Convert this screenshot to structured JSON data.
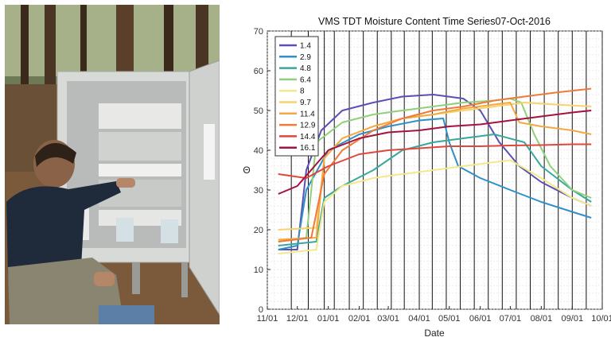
{
  "photo": {
    "description_icon": "photo-icon",
    "subject": "field-technician-at-tdt-enclosure"
  },
  "chart_data": {
    "type": "line",
    "title": "VMS TDT Moisture Content Time Series07-Oct-2016",
    "xlabel": "Date",
    "ylabel": "Θ",
    "ylim": [
      0,
      70
    ],
    "yticks": [
      0,
      10,
      20,
      30,
      40,
      50,
      60,
      70
    ],
    "xticks": [
      "11/01",
      "12/01",
      "01/01",
      "02/01",
      "03/01",
      "04/01",
      "05/01",
      "06/01",
      "07/01",
      "08/01",
      "09/01",
      "10/01"
    ],
    "xlim": [
      "2015-11-01",
      "2016-10-01"
    ],
    "grid": true,
    "legend_position": "top-left",
    "vlines": [
      "2015-11-25",
      "2015-12-12",
      "2015-12-28",
      "2016-01-07",
      "2016-01-22",
      "2016-02-05",
      "2016-02-19",
      "2016-03-04",
      "2016-03-17",
      "2016-04-01",
      "2016-04-14",
      "2016-04-28",
      "2016-05-12",
      "2016-05-26",
      "2016-06-09",
      "2016-06-23",
      "2016-07-07",
      "2016-07-21",
      "2016-08-04",
      "2016-08-18",
      "2016-09-01",
      "2016-09-15"
    ],
    "series": [
      {
        "name": "1.4",
        "color": "#5b4fb5",
        "points": [
          [
            "2015-11-12",
            15
          ],
          [
            "2015-12-01",
            15
          ],
          [
            "2015-12-10",
            35
          ],
          [
            "2015-12-25",
            45
          ],
          [
            "2016-01-15",
            50
          ],
          [
            "2016-02-15",
            52
          ],
          [
            "2016-03-15",
            53.5
          ],
          [
            "2016-04-15",
            54
          ],
          [
            "2016-05-15",
            53
          ],
          [
            "2016-06-01",
            50
          ],
          [
            "2016-06-20",
            42
          ],
          [
            "2016-07-10",
            36
          ],
          [
            "2016-08-01",
            32
          ],
          [
            "2016-09-01",
            28
          ],
          [
            "2016-09-20",
            26
          ]
        ]
      },
      {
        "name": "2.9",
        "color": "#2f8fc7",
        "points": [
          [
            "2015-11-12",
            15
          ],
          [
            "2015-12-01",
            16
          ],
          [
            "2015-12-10",
            30
          ],
          [
            "2016-01-01",
            40
          ],
          [
            "2016-02-01",
            44
          ],
          [
            "2016-03-01",
            46
          ],
          [
            "2016-04-01",
            47.5
          ],
          [
            "2016-04-25",
            48
          ],
          [
            "2016-05-01",
            42
          ],
          [
            "2016-05-10",
            36
          ],
          [
            "2016-06-01",
            33
          ],
          [
            "2016-07-01",
            30
          ],
          [
            "2016-08-01",
            27
          ],
          [
            "2016-09-01",
            24.5
          ],
          [
            "2016-09-20",
            23
          ]
        ]
      },
      {
        "name": "4.8",
        "color": "#3aa79b",
        "points": [
          [
            "2015-11-12",
            16
          ],
          [
            "2015-12-20",
            17
          ],
          [
            "2015-12-28",
            28
          ],
          [
            "2016-01-15",
            31
          ],
          [
            "2016-02-15",
            35
          ],
          [
            "2016-03-15",
            40
          ],
          [
            "2016-04-15",
            42
          ],
          [
            "2016-05-15",
            43
          ],
          [
            "2016-06-15",
            44
          ],
          [
            "2016-07-15",
            42
          ],
          [
            "2016-08-01",
            36
          ],
          [
            "2016-09-01",
            30
          ],
          [
            "2016-09-20",
            27
          ]
        ]
      },
      {
        "name": "6.4",
        "color": "#8fd07a",
        "points": [
          [
            "2015-11-12",
            17
          ],
          [
            "2015-12-10",
            18
          ],
          [
            "2015-12-20",
            42
          ],
          [
            "2016-01-15",
            47
          ],
          [
            "2016-02-15",
            49
          ],
          [
            "2016-03-15",
            50
          ],
          [
            "2016-04-15",
            51
          ],
          [
            "2016-05-15",
            52
          ],
          [
            "2016-06-15",
            52.5
          ],
          [
            "2016-07-01",
            53
          ],
          [
            "2016-07-12",
            52
          ],
          [
            "2016-07-25",
            44
          ],
          [
            "2016-08-10",
            36
          ],
          [
            "2016-09-01",
            30
          ],
          [
            "2016-09-20",
            28
          ]
        ]
      },
      {
        "name": "8",
        "color": "#f2e98a",
        "points": [
          [
            "2015-11-12",
            14
          ],
          [
            "2015-12-20",
            15
          ],
          [
            "2015-12-28",
            27
          ],
          [
            "2016-01-15",
            31
          ],
          [
            "2016-02-15",
            33
          ],
          [
            "2016-03-15",
            34
          ],
          [
            "2016-04-15",
            35
          ],
          [
            "2016-05-15",
            36
          ],
          [
            "2016-06-15",
            37
          ],
          [
            "2016-07-01",
            37.5
          ],
          [
            "2016-08-01",
            33
          ],
          [
            "2016-09-01",
            28
          ],
          [
            "2016-09-20",
            26
          ]
        ]
      },
      {
        "name": "9.7",
        "color": "#f8d26a",
        "points": [
          [
            "2015-11-12",
            20
          ],
          [
            "2015-12-20",
            20.5
          ],
          [
            "2015-12-28",
            38
          ],
          [
            "2016-01-15",
            43
          ],
          [
            "2016-02-15",
            46
          ],
          [
            "2016-03-15",
            48
          ],
          [
            "2016-04-15",
            49
          ],
          [
            "2016-05-15",
            50
          ],
          [
            "2016-06-15",
            51
          ],
          [
            "2016-07-15",
            52
          ],
          [
            "2016-08-15",
            51.5
          ],
          [
            "2016-09-20",
            51
          ]
        ]
      },
      {
        "name": "11.4",
        "color": "#f5a840",
        "points": [
          [
            "2015-11-12",
            17.5
          ],
          [
            "2015-12-20",
            18
          ],
          [
            "2015-12-28",
            38
          ],
          [
            "2016-01-15",
            43
          ],
          [
            "2016-02-15",
            46
          ],
          [
            "2016-03-15",
            48
          ],
          [
            "2016-04-15",
            49
          ],
          [
            "2016-05-15",
            50.5
          ],
          [
            "2016-06-15",
            51.5
          ],
          [
            "2016-07-01",
            52
          ],
          [
            "2016-07-10",
            47
          ],
          [
            "2016-08-01",
            46
          ],
          [
            "2016-09-01",
            45
          ],
          [
            "2016-09-20",
            44
          ]
        ]
      },
      {
        "name": "12.9",
        "color": "#f07a3a",
        "points": [
          [
            "2015-11-12",
            17
          ],
          [
            "2015-12-15",
            18
          ],
          [
            "2015-12-28",
            34
          ],
          [
            "2016-01-15",
            40
          ],
          [
            "2016-02-15",
            45
          ],
          [
            "2016-03-15",
            48
          ],
          [
            "2016-04-15",
            50
          ],
          [
            "2016-05-15",
            51
          ],
          [
            "2016-06-15",
            52.5
          ],
          [
            "2016-07-15",
            53.5
          ],
          [
            "2016-08-15",
            54.5
          ],
          [
            "2016-09-20",
            55.5
          ]
        ]
      },
      {
        "name": "14.4",
        "color": "#e0463c",
        "points": [
          [
            "2015-11-12",
            34
          ],
          [
            "2015-12-10",
            33
          ],
          [
            "2016-01-01",
            36
          ],
          [
            "2016-02-01",
            39
          ],
          [
            "2016-03-01",
            40
          ],
          [
            "2016-04-01",
            40.5
          ],
          [
            "2016-05-01",
            41
          ],
          [
            "2016-06-01",
            41
          ],
          [
            "2016-07-01",
            41.2
          ],
          [
            "2016-08-01",
            41.3
          ],
          [
            "2016-09-01",
            41.5
          ],
          [
            "2016-09-20",
            41.5
          ]
        ]
      },
      {
        "name": "16.1",
        "color": "#a6123f",
        "points": [
          [
            "2015-11-12",
            29
          ],
          [
            "2015-12-01",
            31
          ],
          [
            "2016-01-01",
            40
          ],
          [
            "2016-02-01",
            43
          ],
          [
            "2016-03-01",
            44.5
          ],
          [
            "2016-04-01",
            45
          ],
          [
            "2016-05-01",
            46
          ],
          [
            "2016-06-01",
            46.5
          ],
          [
            "2016-07-01",
            47.5
          ],
          [
            "2016-08-01",
            48.5
          ],
          [
            "2016-09-01",
            49.5
          ],
          [
            "2016-09-20",
            50
          ]
        ]
      }
    ]
  }
}
